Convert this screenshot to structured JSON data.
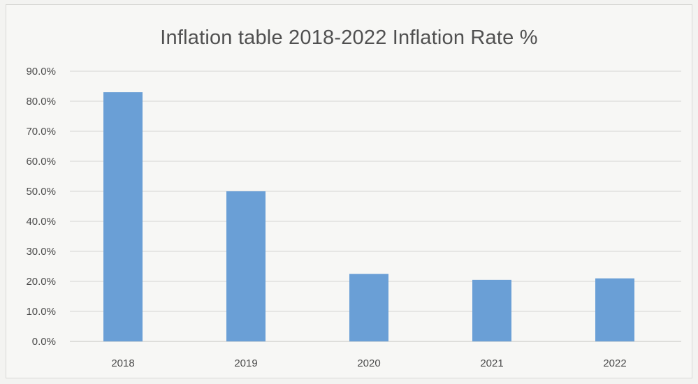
{
  "chart_data": {
    "type": "bar",
    "title": "Inflation table 2018-2022 Inflation Rate %",
    "categories": [
      "2018",
      "2019",
      "2020",
      "2021",
      "2022"
    ],
    "values": [
      83.0,
      50.0,
      22.5,
      20.5,
      21.0
    ],
    "ylim": [
      0,
      90
    ],
    "y_ticks": [
      "0.0%",
      "10.0%",
      "20.0%",
      "30.0%",
      "40.0%",
      "50.0%",
      "60.0%",
      "70.0%",
      "80.0%",
      "90.0%"
    ],
    "grid": true,
    "legend": "none",
    "bar_color": "#6a9fd6",
    "grid_color": "#d6d6d3"
  }
}
